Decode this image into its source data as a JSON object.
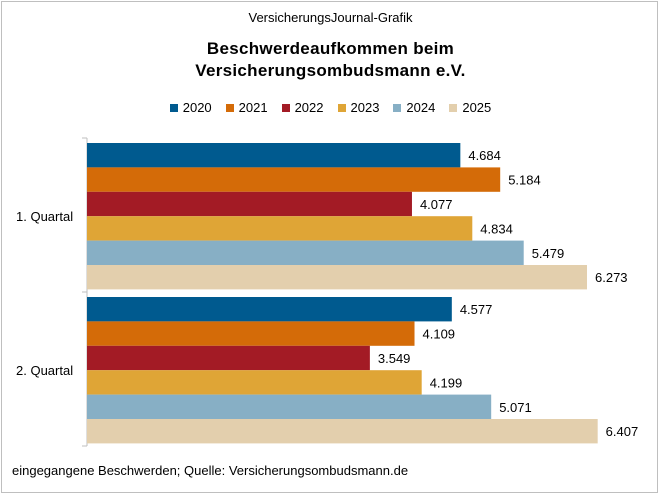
{
  "header": {
    "source_label": "VersicherungsJournal-Grafik",
    "title_line1": "Beschwerdeaufkommen  beim",
    "title_line2": "Versicherungsombudsmann  e.V."
  },
  "footer": {
    "note": "eingegangene  Beschwerden;  Quelle:  Versicherungsombudsmann.de"
  },
  "chart_data": {
    "type": "bar",
    "orientation": "horizontal",
    "title": "Beschwerdeaufkommen  beim Versicherungsombudsmann  e.V.",
    "categories": [
      "1. Quartal",
      "2. Quartal"
    ],
    "series": [
      {
        "name": "2020",
        "color": "#005a8f",
        "values": [
          4684,
          4577
        ],
        "labels": [
          "4.684",
          "4.577"
        ]
      },
      {
        "name": "2021",
        "color": "#d46b08",
        "values": [
          5184,
          4109
        ],
        "labels": [
          "5.184",
          "4.109"
        ]
      },
      {
        "name": "2022",
        "color": "#a31b25",
        "values": [
          4077,
          3549
        ],
        "labels": [
          "4.077",
          "3.549"
        ]
      },
      {
        "name": "2023",
        "color": "#dfa536",
        "values": [
          4834,
          4199
        ],
        "labels": [
          "4.834",
          "4.199"
        ]
      },
      {
        "name": "2024",
        "color": "#87afc5",
        "values": [
          5479,
          5071
        ],
        "labels": [
          "5.479",
          "5.071"
        ]
      },
      {
        "name": "2025",
        "color": "#e3cfad",
        "values": [
          6273,
          6407
        ],
        "labels": [
          "6.273",
          "6.407"
        ]
      }
    ],
    "xlim": [
      0,
      7000
    ],
    "legend_position": "top",
    "grid": false,
    "data_labels": true
  }
}
